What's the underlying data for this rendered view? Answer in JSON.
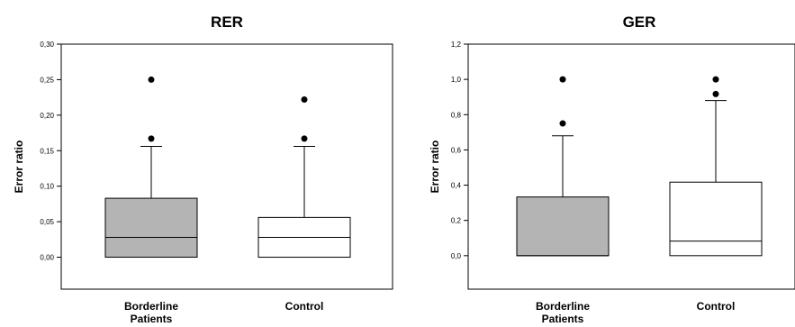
{
  "chart_data": [
    {
      "type": "box",
      "title": "RER",
      "ylabel": "Error ratio",
      "xlabel": "",
      "ylim": [
        -0.045,
        0.3
      ],
      "yticks": [
        "0,00",
        "0,05",
        "0,10",
        "0,15",
        "0,20",
        "0,25",
        "0,30"
      ],
      "yticks_values": [
        0,
        0.05,
        0.1,
        0.15,
        0.2,
        0.25,
        0.3
      ],
      "categories": [
        {
          "label_lines": [
            "Borderline",
            "Patients"
          ],
          "fill": "#b4b4b4",
          "min": 0,
          "q1": 0,
          "median": 0.028,
          "q3": 0.083,
          "whisker_high": 0.156,
          "outliers": [
            0.167,
            0.25
          ]
        },
        {
          "label_lines": [
            "Control"
          ],
          "fill": "#ffffff",
          "min": 0,
          "q1": 0,
          "median": 0.028,
          "q3": 0.056,
          "whisker_high": 0.156,
          "outliers": [
            0.167,
            0.222
          ]
        }
      ],
      "grid": false
    },
    {
      "type": "box",
      "title": "GER",
      "ylabel": "Error ratio",
      "xlabel": "",
      "ylim": [
        -0.19,
        1.2
      ],
      "yticks": [
        "0,0",
        "0,2",
        "0,4",
        "0,6",
        "0,8",
        "1,0",
        "1,2"
      ],
      "yticks_values": [
        0,
        0.2,
        0.4,
        0.6,
        0.8,
        1.0,
        1.2
      ],
      "categories": [
        {
          "label_lines": [
            "Borderline",
            "Patients"
          ],
          "fill": "#b4b4b4",
          "min": 0,
          "q1": 0,
          "median": 0,
          "q3": 0.333,
          "whisker_high": 0.68,
          "outliers": [
            0.75,
            1.0
          ]
        },
        {
          "label_lines": [
            "Control"
          ],
          "fill": "#ffffff",
          "min": 0,
          "q1": 0,
          "median": 0.083,
          "q3": 0.417,
          "whisker_high": 0.88,
          "outliers": [
            0.917,
            1.0
          ]
        }
      ],
      "grid": false
    }
  ],
  "colors": {
    "stroke": "#000000",
    "patients_fill": "#b4b4b4",
    "control_fill": "#ffffff"
  }
}
